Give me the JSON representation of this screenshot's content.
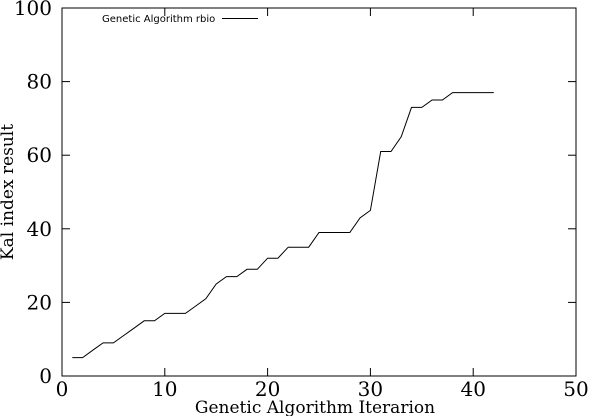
{
  "chart_data": {
    "type": "line",
    "xlabel": "Genetic Algorithm Iterarion",
    "ylabel": "Kal index result",
    "xlim": [
      0,
      50
    ],
    "ylim": [
      0,
      100
    ],
    "x_ticks": [
      0,
      10,
      20,
      30,
      40,
      50
    ],
    "y_ticks": [
      0,
      20,
      40,
      60,
      80,
      100
    ],
    "grid": false,
    "legend_position": "top-left",
    "series": [
      {
        "name": "Genetic Algorithm rbio",
        "color": "#000000",
        "x": [
          1,
          2,
          3,
          4,
          5,
          6,
          7,
          8,
          9,
          10,
          11,
          12,
          13,
          14,
          15,
          16,
          17,
          18,
          19,
          20,
          21,
          22,
          23,
          24,
          25,
          26,
          27,
          28,
          29,
          30,
          31,
          32,
          33,
          34,
          35,
          36,
          37,
          38,
          39,
          40,
          41,
          42
        ],
        "y": [
          5,
          5,
          7,
          9,
          9,
          11,
          13,
          15,
          15,
          17,
          17,
          17,
          19,
          21,
          25,
          27,
          27,
          29,
          29,
          32,
          32,
          35,
          35,
          35,
          39,
          39,
          39,
          39,
          43,
          45,
          61,
          61,
          65,
          73,
          73,
          75,
          75,
          77,
          77,
          77,
          77,
          77
        ]
      }
    ]
  }
}
